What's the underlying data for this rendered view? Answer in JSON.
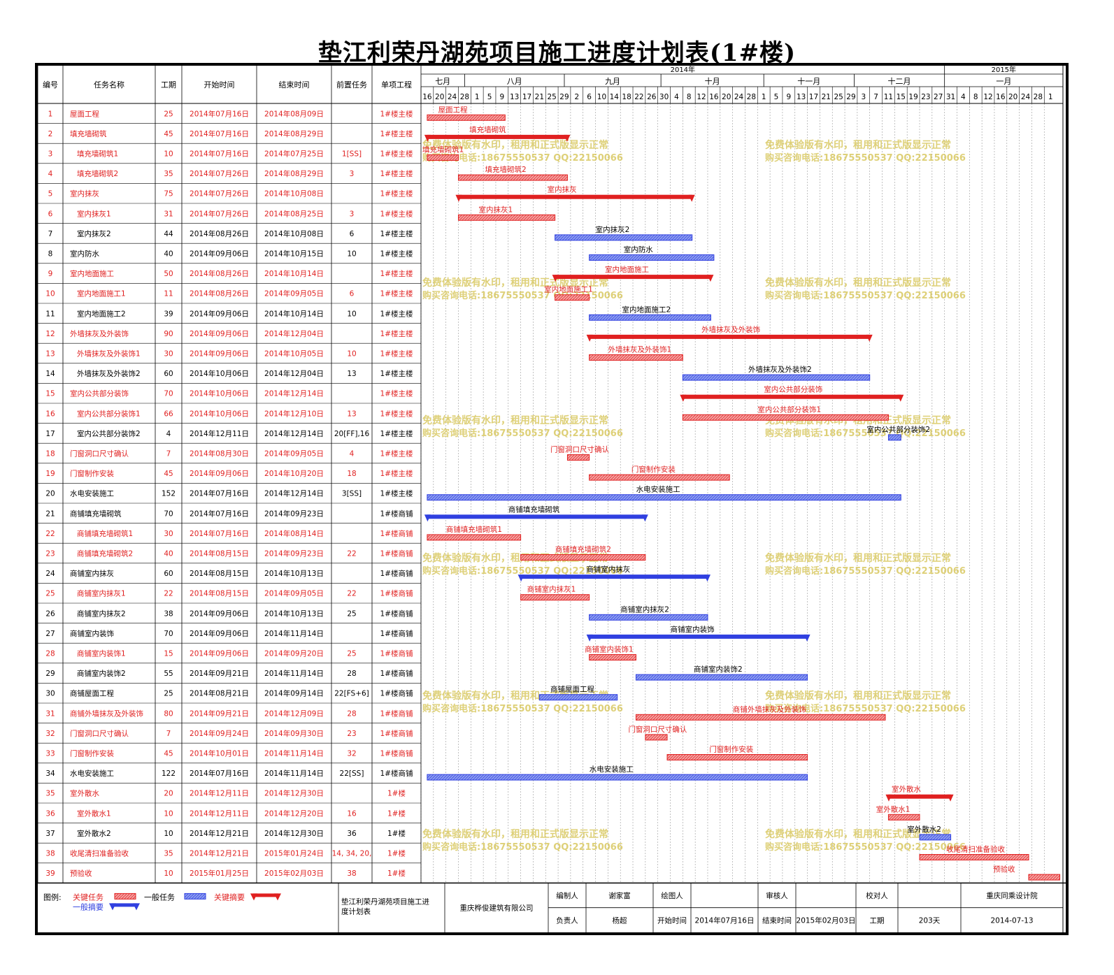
{
  "title": "垫江利荣丹湖苑项目施工进度计划表(1#楼)",
  "colors": {
    "critical": "#e02020",
    "normal": "#3040e0",
    "critical_fill": "#f4a0a0",
    "normal_fill": "#8c9cf0",
    "watermark": "#d8c860"
  },
  "table": {
    "headers": [
      "编号",
      "任务名称",
      "工期",
      "开始时间",
      "结束时间",
      "前置任务",
      "单项工程"
    ]
  },
  "timeline": {
    "years": [
      {
        "label": "2014年",
        "from": "2014-07-14",
        "to": "2014-12-29"
      },
      {
        "label": "2015年",
        "from": "2014-12-29",
        "to": "2015-02-05"
      }
    ],
    "months": [
      {
        "label": "七月",
        "from": "2014-07-14",
        "to": "2014-07-28"
      },
      {
        "label": "八月",
        "from": "2014-07-28",
        "to": "2014-08-29"
      },
      {
        "label": "九月",
        "from": "2014-08-29",
        "to": "2014-09-29"
      },
      {
        "label": "十月",
        "from": "2014-09-29",
        "to": "2014-11-01"
      },
      {
        "label": "十一月",
        "from": "2014-11-01",
        "to": "2014-11-30"
      },
      {
        "label": "十二月",
        "from": "2014-11-30",
        "to": "2014-12-29"
      },
      {
        "label": "一月",
        "from": "2014-12-29",
        "to": "2015-02-05"
      }
    ],
    "start": "2014-07-14",
    "end": "2015-02-05",
    "day_ticks": [
      "16",
      "20",
      "24",
      "28",
      "1",
      "5",
      "9",
      "13",
      "17",
      "21",
      "25",
      "29",
      "2",
      "6",
      "10",
      "14",
      "18",
      "22",
      "26",
      "30",
      "4",
      "8",
      "12",
      "16",
      "20",
      "24",
      "28",
      "1",
      "5",
      "9",
      "13",
      "17",
      "21",
      "25",
      "29",
      "3",
      "7",
      "11",
      "15",
      "19",
      "23",
      "27",
      "31",
      "4",
      "8",
      "12",
      "16",
      "20",
      "24",
      "28",
      "1"
    ]
  },
  "chart_data": {
    "type": "gantt",
    "x_axis": "date",
    "tasks": [
      {
        "id": "1",
        "name": "屋面工程",
        "duration": "25",
        "start_text": "2014年07月16日",
        "end_text": "2014年08月09日",
        "pred": "",
        "unit": "1#楼主楼",
        "critical": true,
        "summary": false,
        "level": 0,
        "start": "2014-07-16",
        "end": "2014-08-09"
      },
      {
        "id": "2",
        "name": "填充墙砌筑",
        "duration": "45",
        "start_text": "2014年07月16日",
        "end_text": "2014年08月29日",
        "pred": "",
        "unit": "1#楼主楼",
        "critical": true,
        "summary": true,
        "level": 0,
        "start": "2014-07-16",
        "end": "2014-08-29"
      },
      {
        "id": "3",
        "name": "填充墙砌筑1",
        "duration": "10",
        "start_text": "2014年07月16日",
        "end_text": "2014年07月25日",
        "pred": "1[SS]",
        "unit": "1#楼主楼",
        "critical": true,
        "summary": false,
        "level": 1,
        "start": "2014-07-16",
        "end": "2014-07-25"
      },
      {
        "id": "4",
        "name": "填充墙砌筑2",
        "duration": "35",
        "start_text": "2014年07月26日",
        "end_text": "2014年08月29日",
        "pred": "3",
        "unit": "1#楼主楼",
        "critical": true,
        "summary": false,
        "level": 1,
        "start": "2014-07-26",
        "end": "2014-08-29"
      },
      {
        "id": "5",
        "name": "室内抹灰",
        "duration": "75",
        "start_text": "2014年07月26日",
        "end_text": "2014年10月08日",
        "pred": "",
        "unit": "1#楼主楼",
        "critical": true,
        "summary": true,
        "level": 0,
        "start": "2014-07-26",
        "end": "2014-10-08"
      },
      {
        "id": "6",
        "name": "室内抹灰1",
        "duration": "31",
        "start_text": "2014年07月26日",
        "end_text": "2014年08月25日",
        "pred": "3",
        "unit": "1#楼主楼",
        "critical": true,
        "summary": false,
        "level": 1,
        "start": "2014-07-26",
        "end": "2014-08-25"
      },
      {
        "id": "7",
        "name": "室内抹灰2",
        "duration": "44",
        "start_text": "2014年08月26日",
        "end_text": "2014年10月08日",
        "pred": "6",
        "unit": "1#楼主楼",
        "critical": false,
        "summary": false,
        "level": 1,
        "start": "2014-08-26",
        "end": "2014-10-08"
      },
      {
        "id": "8",
        "name": "室内防水",
        "duration": "40",
        "start_text": "2014年09月06日",
        "end_text": "2014年10月15日",
        "pred": "10",
        "unit": "1#楼主楼",
        "critical": false,
        "summary": false,
        "level": 0,
        "start": "2014-09-06",
        "end": "2014-10-15"
      },
      {
        "id": "9",
        "name": "室内地面施工",
        "duration": "50",
        "start_text": "2014年08月26日",
        "end_text": "2014年10月14日",
        "pred": "",
        "unit": "1#楼主楼",
        "critical": true,
        "summary": true,
        "level": 0,
        "start": "2014-08-26",
        "end": "2014-10-14"
      },
      {
        "id": "10",
        "name": "室内地面施工1",
        "duration": "11",
        "start_text": "2014年08月26日",
        "end_text": "2014年09月05日",
        "pred": "6",
        "unit": "1#楼主楼",
        "critical": true,
        "summary": false,
        "level": 1,
        "start": "2014-08-26",
        "end": "2014-09-05"
      },
      {
        "id": "11",
        "name": "室内地面施工2",
        "duration": "39",
        "start_text": "2014年09月06日",
        "end_text": "2014年10月14日",
        "pred": "10",
        "unit": "1#楼主楼",
        "critical": false,
        "summary": false,
        "level": 1,
        "start": "2014-09-06",
        "end": "2014-10-14"
      },
      {
        "id": "12",
        "name": "外墙抹灰及外装饰",
        "duration": "90",
        "start_text": "2014年09月06日",
        "end_text": "2014年12月04日",
        "pred": "",
        "unit": "1#楼主楼",
        "critical": true,
        "summary": true,
        "level": 0,
        "start": "2014-09-06",
        "end": "2014-12-04"
      },
      {
        "id": "13",
        "name": "外墙抹灰及外装饰1",
        "duration": "30",
        "start_text": "2014年09月06日",
        "end_text": "2014年10月05日",
        "pred": "10",
        "unit": "1#楼主楼",
        "critical": true,
        "summary": false,
        "level": 1,
        "start": "2014-09-06",
        "end": "2014-10-05"
      },
      {
        "id": "14",
        "name": "外墙抹灰及外装饰2",
        "duration": "60",
        "start_text": "2014年10月06日",
        "end_text": "2014年12月04日",
        "pred": "13",
        "unit": "1#楼主楼",
        "critical": false,
        "summary": false,
        "level": 1,
        "start": "2014-10-06",
        "end": "2014-12-04"
      },
      {
        "id": "15",
        "name": "室内公共部分装饰",
        "duration": "70",
        "start_text": "2014年10月06日",
        "end_text": "2014年12月14日",
        "pred": "",
        "unit": "1#楼主楼",
        "critical": true,
        "summary": true,
        "level": 0,
        "start": "2014-10-06",
        "end": "2014-12-14"
      },
      {
        "id": "16",
        "name": "室内公共部分装饰1",
        "duration": "66",
        "start_text": "2014年10月06日",
        "end_text": "2014年12月10日",
        "pred": "13",
        "unit": "1#楼主楼",
        "critical": true,
        "summary": false,
        "level": 1,
        "start": "2014-10-06",
        "end": "2014-12-10"
      },
      {
        "id": "17",
        "name": "室内公共部分装饰2",
        "duration": "4",
        "start_text": "2014年12月11日",
        "end_text": "2014年12月14日",
        "pred": "20[FF],16",
        "unit": "1#楼主楼",
        "critical": false,
        "summary": false,
        "level": 1,
        "start": "2014-12-11",
        "end": "2014-12-14"
      },
      {
        "id": "18",
        "name": "门窗洞口尺寸确认",
        "duration": "7",
        "start_text": "2014年08月30日",
        "end_text": "2014年09月05日",
        "pred": "4",
        "unit": "1#楼主楼",
        "critical": true,
        "summary": false,
        "level": 0,
        "start": "2014-08-30",
        "end": "2014-09-05"
      },
      {
        "id": "19",
        "name": "门窗制作安装",
        "duration": "45",
        "start_text": "2014年09月06日",
        "end_text": "2014年10月20日",
        "pred": "18",
        "unit": "1#楼主楼",
        "critical": true,
        "summary": false,
        "level": 0,
        "start": "2014-09-06",
        "end": "2014-10-20"
      },
      {
        "id": "20",
        "name": "水电安装施工",
        "duration": "152",
        "start_text": "2014年07月16日",
        "end_text": "2014年12月14日",
        "pred": "3[SS]",
        "unit": "1#楼主楼",
        "critical": false,
        "summary": false,
        "level": 0,
        "start": "2014-07-16",
        "end": "2014-12-14"
      },
      {
        "id": "21",
        "name": "商铺填充墙砌筑",
        "duration": "70",
        "start_text": "2014年07月16日",
        "end_text": "2014年09月23日",
        "pred": "",
        "unit": "1#楼商铺",
        "critical": false,
        "summary": true,
        "level": 0,
        "start": "2014-07-16",
        "end": "2014-09-23"
      },
      {
        "id": "22",
        "name": "商铺填充墙砌筑1",
        "duration": "30",
        "start_text": "2014年07月16日",
        "end_text": "2014年08月14日",
        "pred": "",
        "unit": "1#楼商铺",
        "critical": true,
        "summary": false,
        "level": 1,
        "start": "2014-07-16",
        "end": "2014-08-14"
      },
      {
        "id": "23",
        "name": "商铺填充墙砌筑2",
        "duration": "40",
        "start_text": "2014年08月15日",
        "end_text": "2014年09月23日",
        "pred": "22",
        "unit": "1#楼商铺",
        "critical": true,
        "summary": false,
        "level": 1,
        "start": "2014-08-15",
        "end": "2014-09-23"
      },
      {
        "id": "24",
        "name": "商铺室内抹灰",
        "duration": "60",
        "start_text": "2014年08月15日",
        "end_text": "2014年10月13日",
        "pred": "",
        "unit": "1#楼商铺",
        "critical": false,
        "summary": true,
        "level": 0,
        "start": "2014-08-15",
        "end": "2014-10-13"
      },
      {
        "id": "25",
        "name": "商铺室内抹灰1",
        "duration": "22",
        "start_text": "2014年08月15日",
        "end_text": "2014年09月05日",
        "pred": "22",
        "unit": "1#楼商铺",
        "critical": true,
        "summary": false,
        "level": 1,
        "start": "2014-08-15",
        "end": "2014-09-05"
      },
      {
        "id": "26",
        "name": "商铺室内抹灰2",
        "duration": "38",
        "start_text": "2014年09月06日",
        "end_text": "2014年10月13日",
        "pred": "25",
        "unit": "1#楼商铺",
        "critical": false,
        "summary": false,
        "level": 1,
        "start": "2014-09-06",
        "end": "2014-10-13"
      },
      {
        "id": "27",
        "name": "商铺室内装饰",
        "duration": "70",
        "start_text": "2014年09月06日",
        "end_text": "2014年11月14日",
        "pred": "",
        "unit": "1#楼商铺",
        "critical": false,
        "summary": true,
        "level": 0,
        "start": "2014-09-06",
        "end": "2014-11-14"
      },
      {
        "id": "28",
        "name": "商铺室内装饰1",
        "duration": "15",
        "start_text": "2014年09月06日",
        "end_text": "2014年09月20日",
        "pred": "25",
        "unit": "1#楼商铺",
        "critical": true,
        "summary": false,
        "level": 1,
        "start": "2014-09-06",
        "end": "2014-09-20"
      },
      {
        "id": "29",
        "name": "商铺室内装饰2",
        "duration": "55",
        "start_text": "2014年09月21日",
        "end_text": "2014年11月14日",
        "pred": "28",
        "unit": "1#楼商铺",
        "critical": false,
        "summary": false,
        "level": 1,
        "start": "2014-09-21",
        "end": "2014-11-14"
      },
      {
        "id": "30",
        "name": "商铺屋面工程",
        "duration": "25",
        "start_text": "2014年08月21日",
        "end_text": "2014年09月14日",
        "pred": "22[FS+6]",
        "unit": "1#楼商铺",
        "critical": false,
        "summary": false,
        "level": 0,
        "start": "2014-08-21",
        "end": "2014-09-14"
      },
      {
        "id": "31",
        "name": "商铺外墙抹灰及外装饰",
        "duration": "80",
        "start_text": "2014年09月21日",
        "end_text": "2014年12月09日",
        "pred": "28",
        "unit": "1#楼商铺",
        "critical": true,
        "summary": false,
        "level": 0,
        "start": "2014-09-21",
        "end": "2014-12-09"
      },
      {
        "id": "32",
        "name": "门窗洞口尺寸确认",
        "duration": "7",
        "start_text": "2014年09月24日",
        "end_text": "2014年09月30日",
        "pred": "23",
        "unit": "1#楼商铺",
        "critical": true,
        "summary": false,
        "level": 0,
        "start": "2014-09-24",
        "end": "2014-09-30"
      },
      {
        "id": "33",
        "name": "门窗制作安装",
        "duration": "45",
        "start_text": "2014年10月01日",
        "end_text": "2014年11月14日",
        "pred": "32",
        "unit": "1#楼商铺",
        "critical": true,
        "summary": false,
        "level": 0,
        "start": "2014-10-01",
        "end": "2014-11-14"
      },
      {
        "id": "34",
        "name": "水电安装施工",
        "duration": "122",
        "start_text": "2014年07月16日",
        "end_text": "2014年11月14日",
        "pred": "22[SS]",
        "unit": "1#楼商铺",
        "critical": false,
        "summary": false,
        "level": 0,
        "start": "2014-07-16",
        "end": "2014-11-14"
      },
      {
        "id": "35",
        "name": "室外散水",
        "duration": "20",
        "start_text": "2014年12月11日",
        "end_text": "2014年12月30日",
        "pred": "",
        "unit": "1#楼",
        "critical": true,
        "summary": true,
        "level": 0,
        "start": "2014-12-11",
        "end": "2014-12-30"
      },
      {
        "id": "36",
        "name": "室外散水1",
        "duration": "10",
        "start_text": "2014年12月11日",
        "end_text": "2014年12月20日",
        "pred": "16",
        "unit": "1#楼",
        "critical": true,
        "summary": false,
        "level": 1,
        "start": "2014-12-11",
        "end": "2014-12-20"
      },
      {
        "id": "37",
        "name": "室外散水2",
        "duration": "10",
        "start_text": "2014年12月21日",
        "end_text": "2014年12月30日",
        "pred": "36",
        "unit": "1#楼",
        "critical": false,
        "summary": false,
        "level": 1,
        "start": "2014-12-21",
        "end": "2014-12-30"
      },
      {
        "id": "38",
        "name": "收尾清扫准备验收",
        "duration": "35",
        "start_text": "2014年12月21日",
        "end_text": "2015年01月24日",
        "pred": "14, 34, 20,",
        "unit": "1#楼",
        "critical": true,
        "summary": false,
        "level": 0,
        "start": "2014-12-21",
        "end": "2015-01-24"
      },
      {
        "id": "39",
        "name": "预验收",
        "duration": "10",
        "start_text": "2015年01月25日",
        "end_text": "2015年02月03日",
        "pred": "38",
        "unit": "1#楼",
        "critical": true,
        "summary": false,
        "level": 0,
        "start": "2015-01-25",
        "end": "2015-02-03"
      }
    ]
  },
  "watermark": {
    "line1": "免费体验版有水印，租用和正式版显示正常",
    "line2": "购买咨询电话:18675550537 QQ:22150066"
  },
  "legend": {
    "label": "图例:",
    "critical_task": "关键任务",
    "normal_task": "一般任务",
    "critical_summary": "关键摘要",
    "normal_summary": "一般摘要"
  },
  "footer": {
    "project_name": "垫江利荣丹湖苑项目施工进度计划表",
    "company": "重庆桦俊建筑有限公司",
    "compiler_label": "编制人",
    "compiler": "谢家富",
    "drawer_label": "绘图人",
    "drawer": "",
    "reviewer_label": "审核人",
    "reviewer": "",
    "checker_label": "校对人",
    "checker": "",
    "institute": "重庆同乘设计院",
    "manager_label": "负责人",
    "manager": "杨超",
    "start_label": "开始时间",
    "start": "2014年07月16日",
    "end_label": "结束时间",
    "end": "2015年02月03日",
    "duration_label": "工期",
    "duration": "203天",
    "date": "2014-07-13"
  }
}
